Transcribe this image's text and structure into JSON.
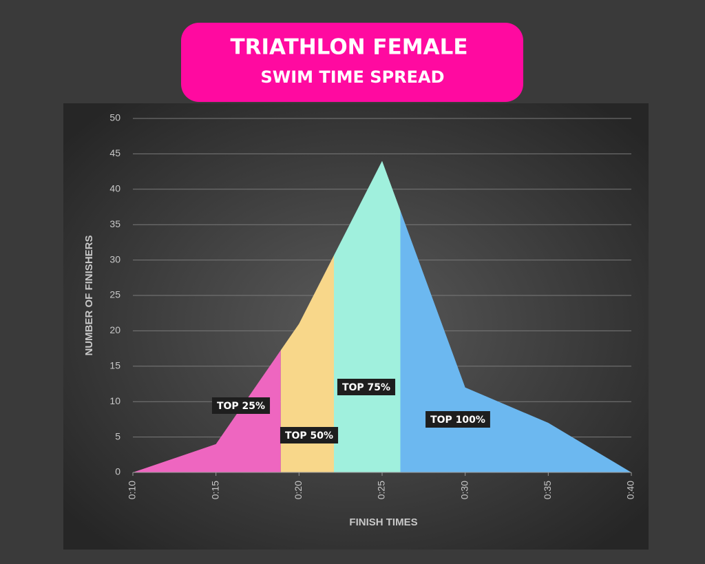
{
  "chart_data": {
    "type": "area",
    "title": "TRIATHLON FEMALE",
    "subtitle": "SWIM TIME SPREAD",
    "x_label": "FINISH TIMES",
    "y_label": "NUMBER OF FINISHERS",
    "x": [
      10,
      15,
      20,
      25,
      30,
      35,
      40
    ],
    "values": [
      0,
      4,
      21,
      44,
      12,
      7,
      0
    ],
    "segments": [
      {
        "name": "TOP 25%",
        "color": "#ee66c0",
        "from": 10,
        "to": 18.9
      },
      {
        "name": "TOP 50%",
        "color": "#f8d78a",
        "from": 18.9,
        "to": 22.1
      },
      {
        "name": "TOP 75%",
        "color": "#a0f0dd",
        "from": 22.1,
        "to": 26.1
      },
      {
        "name": "TOP 100%",
        "color": "#6cb8f0",
        "from": 26.1,
        "to": 40
      }
    ],
    "xlim": [
      10,
      40
    ],
    "xticks": [
      {
        "value": 10,
        "label": "0:10"
      },
      {
        "value": 15,
        "label": "0:15"
      },
      {
        "value": 20,
        "label": "0:20"
      },
      {
        "value": 25,
        "label": "0:25"
      },
      {
        "value": 30,
        "label": "0:30"
      },
      {
        "value": 35,
        "label": "0:35"
      },
      {
        "value": 40,
        "label": "0:40"
      }
    ],
    "ylim": [
      0,
      50
    ],
    "yticks": [
      0,
      5,
      10,
      15,
      20,
      25,
      30,
      35,
      40,
      45,
      50
    ],
    "grid": true
  }
}
